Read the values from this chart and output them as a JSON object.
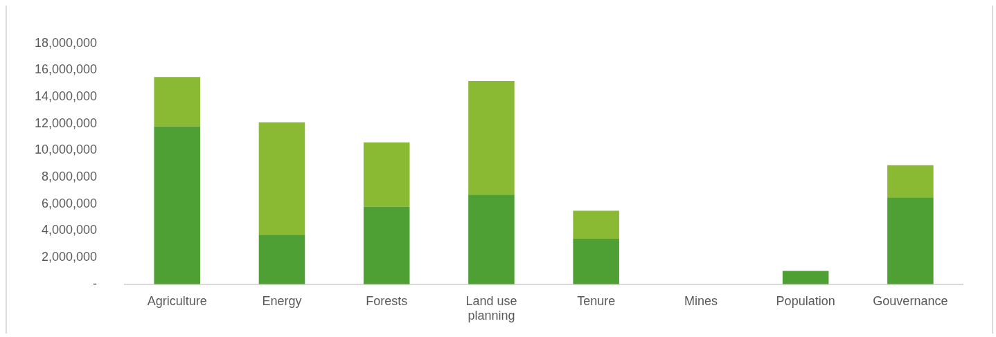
{
  "chart_data": {
    "type": "bar",
    "stacked": true,
    "categories": [
      "Agriculture",
      "Energy",
      "Forests",
      "Land use planning",
      "Tenure",
      "Mines",
      "Population",
      "Gouvernance"
    ],
    "series": [
      {
        "color": "#4e9f34",
        "values": [
          11800000,
          3700000,
          5800000,
          6700000,
          3400000,
          0,
          1000000,
          6500000
        ]
      },
      {
        "color": "#8ab934",
        "values": [
          3700000,
          8400000,
          4800000,
          8500000,
          2100000,
          0,
          0,
          2400000
        ]
      }
    ],
    "ylim": [
      0,
      18000000
    ],
    "yticks": [
      {
        "value": 0,
        "label": "-"
      },
      {
        "value": 2000000,
        "label": "2,000,000"
      },
      {
        "value": 4000000,
        "label": "4,000,000"
      },
      {
        "value": 6000000,
        "label": "6,000,000"
      },
      {
        "value": 8000000,
        "label": "8,000,000"
      },
      {
        "value": 10000000,
        "label": "10,000,000"
      },
      {
        "value": 12000000,
        "label": "12,000,000"
      },
      {
        "value": 14000000,
        "label": "14,000,000"
      },
      {
        "value": 16000000,
        "label": "16,000,000"
      },
      {
        "value": 18000000,
        "label": "18,000,000"
      }
    ],
    "grid": false,
    "legend": false
  }
}
